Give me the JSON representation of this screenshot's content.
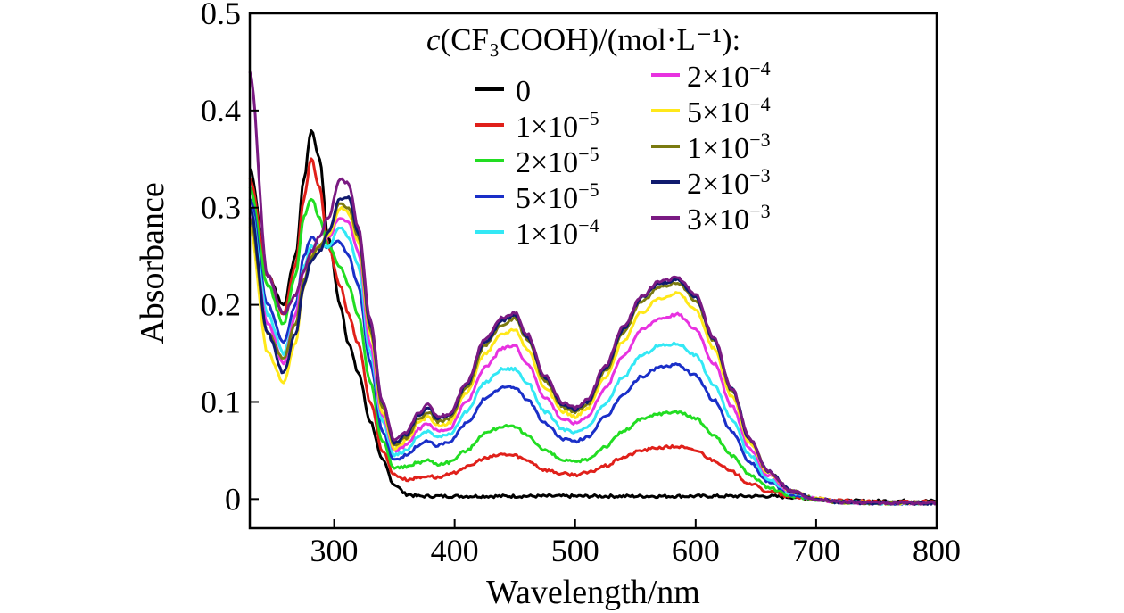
{
  "chart_data": {
    "type": "line",
    "title": "",
    "xlabel": "Wavelength/nm",
    "ylabel": "Absorbance",
    "xlim": [
      230,
      800
    ],
    "ylim": [
      -0.03,
      0.5
    ],
    "xticks": [
      300,
      400,
      500,
      600,
      700,
      800
    ],
    "yticks": [
      0,
      0.1,
      0.2,
      0.3,
      0.4,
      0.5
    ],
    "xtick_labels": [
      "300",
      "400",
      "500",
      "600",
      "700",
      "800"
    ],
    "ytick_labels": [
      "0",
      "0.1",
      "0.2",
      "0.3",
      "0.4",
      "0.5"
    ],
    "grid": false,
    "legend": {
      "title_italic": "c",
      "title_rest": "(CF₃COOH)/(mol·L⁻¹):",
      "placement": "top-right"
    },
    "x": [
      230,
      245,
      258,
      268,
      275,
      281,
      288,
      295,
      305,
      312,
      320,
      330,
      340,
      350,
      360,
      370,
      378,
      386,
      395,
      410,
      425,
      440,
      450,
      460,
      475,
      490,
      500,
      510,
      525,
      540,
      555,
      570,
      585,
      600,
      615,
      630,
      645,
      660,
      680,
      700,
      720,
      750,
      800
    ],
    "series": [
      {
        "name": "0",
        "base": "0",
        "exp": "",
        "color": "#000000",
        "values": [
          0.34,
          0.23,
          0.2,
          0.25,
          0.33,
          0.38,
          0.35,
          0.27,
          0.2,
          0.16,
          0.13,
          0.08,
          0.04,
          0.015,
          0.005,
          0.003,
          0.003,
          0.003,
          0.003,
          0.003,
          0.003,
          0.003,
          0.003,
          0.003,
          0.003,
          0.003,
          0.003,
          0.003,
          0.003,
          0.003,
          0.003,
          0.003,
          0.003,
          0.003,
          0.003,
          0.003,
          0.003,
          0.003,
          0.002,
          0.0,
          -0.002,
          -0.002,
          -0.002
        ]
      },
      {
        "name": "1×10⁻⁵",
        "base": "1×10",
        "exp": "−5",
        "color": "#e0201a",
        "values": [
          0.33,
          0.23,
          0.19,
          0.24,
          0.31,
          0.35,
          0.32,
          0.26,
          0.22,
          0.19,
          0.16,
          0.1,
          0.05,
          0.025,
          0.02,
          0.022,
          0.024,
          0.022,
          0.025,
          0.033,
          0.042,
          0.046,
          0.045,
          0.04,
          0.03,
          0.026,
          0.025,
          0.027,
          0.034,
          0.043,
          0.05,
          0.053,
          0.054,
          0.05,
          0.04,
          0.028,
          0.016,
          0.008,
          0.002,
          0.0,
          -0.002,
          -0.003,
          -0.003
        ]
      },
      {
        "name": "2×10⁻⁵",
        "base": "2×10",
        "exp": "−5",
        "color": "#22dd22",
        "values": [
          0.32,
          0.22,
          0.18,
          0.23,
          0.29,
          0.31,
          0.29,
          0.26,
          0.24,
          0.22,
          0.19,
          0.12,
          0.06,
          0.032,
          0.033,
          0.038,
          0.04,
          0.036,
          0.038,
          0.05,
          0.068,
          0.075,
          0.074,
          0.066,
          0.05,
          0.04,
          0.038,
          0.041,
          0.054,
          0.07,
          0.082,
          0.088,
          0.09,
          0.083,
          0.066,
          0.045,
          0.025,
          0.012,
          0.003,
          0.0,
          -0.003,
          -0.004,
          -0.004
        ]
      },
      {
        "name": "5×10⁻⁵",
        "base": "5×10",
        "exp": "−5",
        "color": "#1a2fc8",
        "values": [
          0.31,
          0.2,
          0.16,
          0.2,
          0.25,
          0.27,
          0.26,
          0.26,
          0.265,
          0.25,
          0.22,
          0.14,
          0.07,
          0.04,
          0.045,
          0.055,
          0.06,
          0.055,
          0.058,
          0.078,
          0.103,
          0.115,
          0.115,
          0.103,
          0.078,
          0.062,
          0.059,
          0.064,
          0.084,
          0.108,
          0.126,
          0.136,
          0.138,
          0.127,
          0.102,
          0.07,
          0.038,
          0.018,
          0.005,
          0.0,
          -0.003,
          -0.004,
          -0.004
        ]
      },
      {
        "name": "1×10⁻⁴",
        "base": "1×10",
        "exp": "−4",
        "color": "#33e8f5",
        "values": [
          0.3,
          0.19,
          0.15,
          0.19,
          0.24,
          0.26,
          0.26,
          0.26,
          0.28,
          0.27,
          0.24,
          0.15,
          0.08,
          0.045,
          0.05,
          0.065,
          0.07,
          0.064,
          0.066,
          0.09,
          0.12,
          0.134,
          0.134,
          0.12,
          0.09,
          0.072,
          0.068,
          0.074,
          0.098,
          0.126,
          0.148,
          0.158,
          0.16,
          0.148,
          0.118,
          0.082,
          0.045,
          0.021,
          0.006,
          0.0,
          -0.003,
          -0.004,
          -0.004
        ]
      },
      {
        "name": "2×10⁻⁴",
        "base": "2×10",
        "exp": "−4",
        "color": "#e832e0",
        "values": [
          0.29,
          0.18,
          0.14,
          0.19,
          0.235,
          0.255,
          0.26,
          0.27,
          0.29,
          0.285,
          0.255,
          0.16,
          0.085,
          0.05,
          0.055,
          0.072,
          0.078,
          0.07,
          0.072,
          0.1,
          0.135,
          0.155,
          0.158,
          0.14,
          0.105,
          0.082,
          0.078,
          0.085,
          0.114,
          0.148,
          0.174,
          0.186,
          0.19,
          0.175,
          0.14,
          0.096,
          0.052,
          0.024,
          0.007,
          0.0,
          -0.003,
          -0.004,
          -0.004
        ]
      },
      {
        "name": "5×10⁻⁴",
        "base": "5×10",
        "exp": "−4",
        "color": "#ffe81a",
        "values": [
          0.28,
          0.15,
          0.12,
          0.16,
          0.22,
          0.25,
          0.26,
          0.27,
          0.3,
          0.295,
          0.265,
          0.17,
          0.09,
          0.052,
          0.06,
          0.078,
          0.085,
          0.076,
          0.078,
          0.11,
          0.15,
          0.17,
          0.175,
          0.155,
          0.115,
          0.09,
          0.085,
          0.093,
          0.125,
          0.163,
          0.192,
          0.207,
          0.212,
          0.195,
          0.155,
          0.106,
          0.058,
          0.027,
          0.008,
          0.0,
          -0.003,
          -0.004,
          -0.004
        ]
      },
      {
        "name": "1×10⁻³",
        "base": "1×10",
        "exp": "−3",
        "color": "#7a7a10",
        "values": [
          0.29,
          0.17,
          0.145,
          0.18,
          0.225,
          0.25,
          0.26,
          0.275,
          0.305,
          0.3,
          0.27,
          0.175,
          0.095,
          0.055,
          0.063,
          0.082,
          0.09,
          0.08,
          0.082,
          0.115,
          0.158,
          0.18,
          0.186,
          0.165,
          0.122,
          0.095,
          0.09,
          0.098,
          0.132,
          0.172,
          0.203,
          0.218,
          0.223,
          0.205,
          0.163,
          0.112,
          0.061,
          0.028,
          0.008,
          0.0,
          -0.003,
          -0.004,
          -0.004
        ]
      },
      {
        "name": "2×10⁻³",
        "base": "2×10",
        "exp": "−3",
        "color": "#101a6e",
        "values": [
          0.3,
          0.17,
          0.13,
          0.17,
          0.22,
          0.245,
          0.255,
          0.275,
          0.31,
          0.31,
          0.275,
          0.18,
          0.1,
          0.058,
          0.066,
          0.086,
          0.094,
          0.083,
          0.085,
          0.118,
          0.162,
          0.184,
          0.19,
          0.168,
          0.125,
          0.097,
          0.092,
          0.1,
          0.135,
          0.175,
          0.207,
          0.222,
          0.226,
          0.208,
          0.165,
          0.113,
          0.062,
          0.029,
          0.008,
          0.0,
          -0.003,
          -0.004,
          -0.004
        ]
      },
      {
        "name": "3×10⁻³",
        "base": "3×10",
        "exp": "−3",
        "color": "#7a1a82",
        "values": [
          0.44,
          0.23,
          0.19,
          0.21,
          0.235,
          0.255,
          0.27,
          0.29,
          0.33,
          0.325,
          0.28,
          0.185,
          0.1,
          0.06,
          0.068,
          0.089,
          0.097,
          0.085,
          0.087,
          0.12,
          0.165,
          0.187,
          0.192,
          0.17,
          0.127,
          0.099,
          0.094,
          0.102,
          0.137,
          0.177,
          0.209,
          0.224,
          0.228,
          0.21,
          0.166,
          0.114,
          0.062,
          0.029,
          0.008,
          0.0,
          -0.003,
          -0.004,
          -0.004
        ]
      }
    ]
  }
}
